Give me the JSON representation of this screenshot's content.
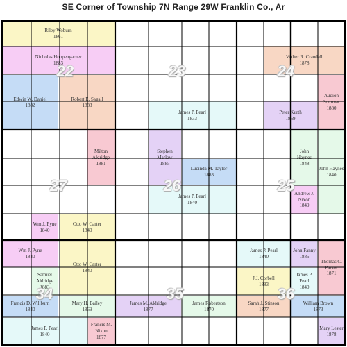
{
  "title": "SE Corner   of Township 7N   Range 29W   Franklin Co., Ar",
  "sections": [
    {
      "id": "22",
      "label": "22"
    },
    {
      "id": "23",
      "label": "23"
    },
    {
      "id": "24",
      "label": "24"
    },
    {
      "id": "27",
      "label": "27"
    },
    {
      "id": "26",
      "label": "26"
    },
    {
      "id": "25",
      "label": "25"
    },
    {
      "id": "34",
      "label": "34"
    },
    {
      "id": "35",
      "label": "35"
    },
    {
      "id": "36",
      "label": "36"
    }
  ],
  "parcels": [
    {
      "name": "Riley Woburn",
      "year": "1861",
      "color": "#fbf6c6"
    },
    {
      "name": "Nicholas Hoopengarner",
      "year": "1883",
      "color": "#f7cdf5"
    },
    {
      "name": "Walter R. Crandall",
      "year": "1878",
      "color": "#f8d7c4"
    },
    {
      "name": "Edwin W. Daniel",
      "year": "1882",
      "color": "#c5dcf6"
    },
    {
      "name": "Robert E. Sagall",
      "year": "1883",
      "color": "#f8d7c4"
    },
    {
      "name": "Audion Sommar",
      "year": "1880",
      "color": "#f8c9d2"
    },
    {
      "name": "James P. Pearl",
      "year": "1833",
      "color": "#e5f9f9"
    },
    {
      "name": "Peter Kurth",
      "year": "1869",
      "color": "#e4d2f6"
    },
    {
      "name": "Milton Aldridge",
      "year": "1881",
      "color": "#f8c9d2"
    },
    {
      "name": "Stephen Marlow",
      "year": "1885",
      "color": "#e4d2f6"
    },
    {
      "name": "Lucinda M. Taylor",
      "year": "1883",
      "color": "#c5dcf6"
    },
    {
      "name": "John Haynes",
      "year": "1848",
      "color": "#e5f9e9"
    },
    {
      "name": "John Haynes",
      "year": "1840",
      "color": "#e5f9e9"
    },
    {
      "name": "James P. Pearl",
      "year": "1840",
      "color": "#e5f9f9"
    },
    {
      "name": "Andrew J. Nixon",
      "year": "1849",
      "color": "#f7cdf5"
    },
    {
      "name": "Wm J. Pyne",
      "year": "1840",
      "color": "#f7cdf5"
    },
    {
      "name": "Otto W. Carter",
      "year": "1840",
      "color": "#fbf6c6"
    },
    {
      "name": "Wm J. Pyne",
      "year": "1840",
      "color": "#f7cdf5"
    },
    {
      "name": "Otto W. Carter",
      "year": "1840",
      "color": "#fbf6c6"
    },
    {
      "name": "Samuel Aldridge",
      "year": "1883",
      "color": "#e5f9e9"
    },
    {
      "name": "James P. Pearl",
      "year": "1840",
      "color": "#e5f9f9"
    },
    {
      "name": "John Fanny",
      "year": "1885",
      "color": "#e4d2f6"
    },
    {
      "name": "Thomas C. Parker",
      "year": "1871",
      "color": "#f8c9d2"
    },
    {
      "name": "James P. Pearl",
      "year": "1840",
      "color": "#e5f9f9"
    },
    {
      "name": "J.J. Corbell",
      "year": "1883",
      "color": "#fbf6c6"
    },
    {
      "name": "Francis D. Willburn",
      "year": "1840",
      "color": "#c5dcf6"
    },
    {
      "name": "Mary H. Bailey",
      "year": "1869",
      "color": "#e5f9e9"
    },
    {
      "name": "James M. Aldridge",
      "year": "1877",
      "color": "#e4d2f6"
    },
    {
      "name": "James Robertson",
      "year": "1870",
      "color": "#e5f9e9"
    },
    {
      "name": "Sarah J. Stinson",
      "year": "1877",
      "color": "#f8d7c4"
    },
    {
      "name": "William Brown",
      "year": "1873",
      "color": "#c5dcf6"
    },
    {
      "name": "James P. Pearl",
      "year": "1840",
      "color": "#e5f9f9"
    },
    {
      "name": "Francis M. Nixon",
      "year": "1877",
      "color": "#f8c9d2"
    },
    {
      "name": "Mary Lester",
      "year": "1878",
      "color": "#e4d2f6"
    }
  ]
}
